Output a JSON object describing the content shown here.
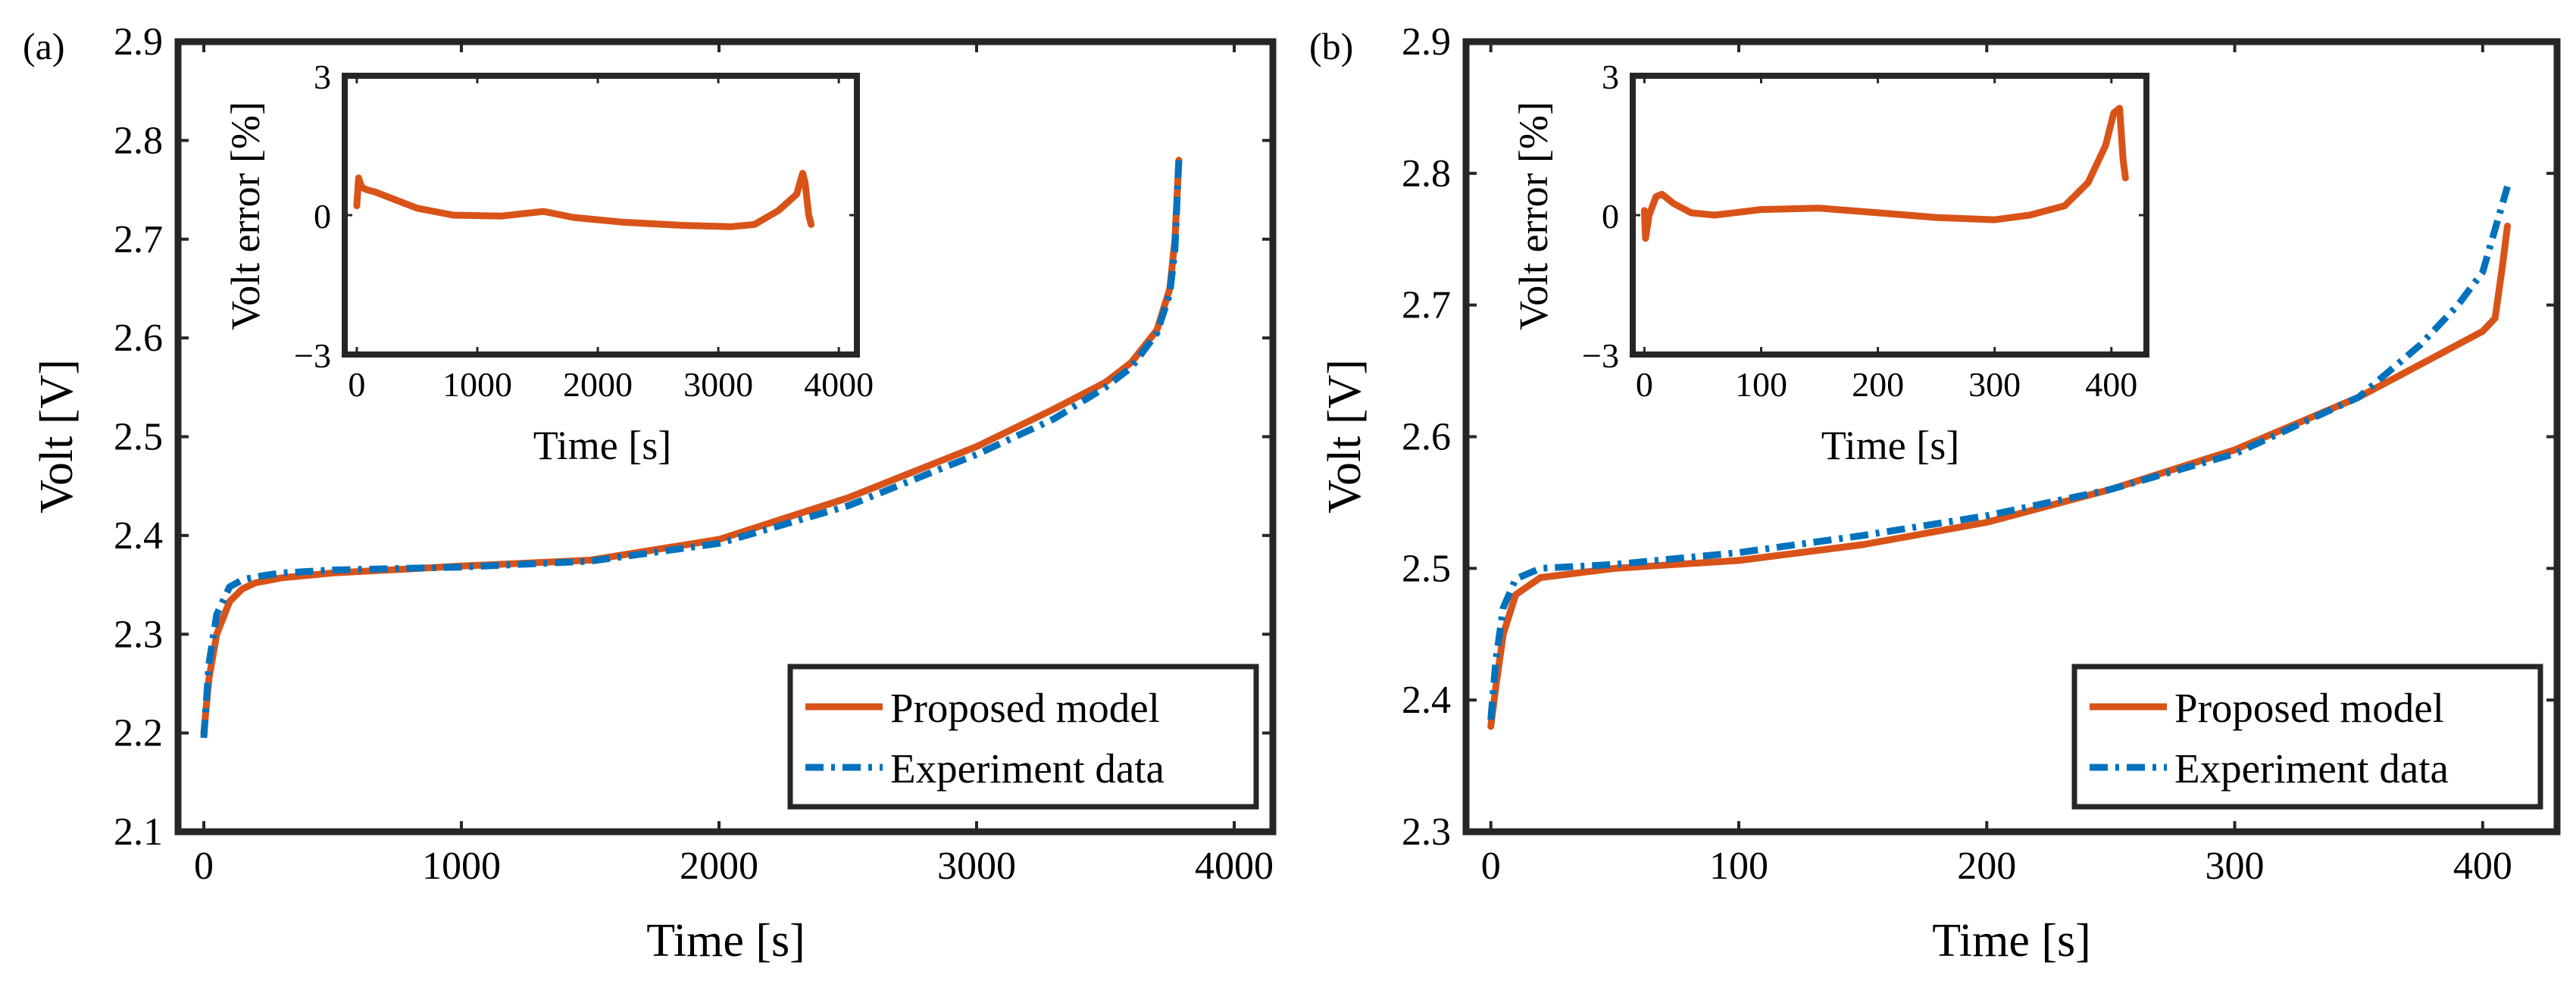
{
  "chart_data": [
    {
      "panel": "(a)",
      "type": "line",
      "xlabel": "Time [s]",
      "ylabel": "Volt [V]",
      "xlim": [
        -100,
        4150
      ],
      "ylim": [
        2.1,
        2.9
      ],
      "xticks": [
        0,
        1000,
        2000,
        3000,
        4000
      ],
      "yticks": [
        2.1,
        2.2,
        2.3,
        2.4,
        2.5,
        2.6,
        2.7,
        2.8,
        2.9
      ],
      "xtick_labels": [
        "0",
        "1000",
        "2000",
        "3000",
        "4000"
      ],
      "ytick_labels": [
        "2.1",
        "2.2",
        "2.3",
        "2.4",
        "2.5",
        "2.6",
        "2.7",
        "2.8",
        "2.9"
      ],
      "legend": [
        "Proposed model",
        "Experiment data"
      ],
      "legend_position": "bottom-right",
      "series": [
        {
          "name": "Proposed model",
          "color": "#D95319",
          "style": "solid",
          "points": [
            [
              0,
              2.2
            ],
            [
              20,
              2.255
            ],
            [
              50,
              2.3
            ],
            [
              100,
              2.333
            ],
            [
              150,
              2.346
            ],
            [
              200,
              2.352
            ],
            [
              300,
              2.357
            ],
            [
              500,
              2.362
            ],
            [
              1000,
              2.369
            ],
            [
              1500,
              2.375
            ],
            [
              2000,
              2.396
            ],
            [
              2500,
              2.438
            ],
            [
              3000,
              2.49
            ],
            [
              3300,
              2.528
            ],
            [
              3500,
              2.555
            ],
            [
              3600,
              2.575
            ],
            [
              3700,
              2.608
            ],
            [
              3750,
              2.65
            ],
            [
              3770,
              2.7
            ],
            [
              3785,
              2.78
            ]
          ]
        },
        {
          "name": "Experiment data",
          "color": "#0072BD",
          "style": "dashdot",
          "points": [
            [
              0,
              2.195
            ],
            [
              20,
              2.27
            ],
            [
              50,
              2.32
            ],
            [
              100,
              2.348
            ],
            [
              150,
              2.355
            ],
            [
              200,
              2.358
            ],
            [
              300,
              2.362
            ],
            [
              500,
              2.365
            ],
            [
              1000,
              2.368
            ],
            [
              1500,
              2.374
            ],
            [
              2000,
              2.392
            ],
            [
              2500,
              2.43
            ],
            [
              3000,
              2.482
            ],
            [
              3300,
              2.518
            ],
            [
              3500,
              2.55
            ],
            [
              3600,
              2.57
            ],
            [
              3700,
              2.605
            ],
            [
              3750,
              2.645
            ],
            [
              3770,
              2.69
            ],
            [
              3785,
              2.78
            ]
          ]
        }
      ],
      "inset": {
        "type": "line",
        "xlabel": "Time [s]",
        "ylabel": "Volt error [%]",
        "xlim": [
          -100,
          4150
        ],
        "ylim": [
          -3,
          3
        ],
        "xticks": [
          0,
          1000,
          2000,
          3000,
          4000
        ],
        "yticks": [
          -3,
          0,
          3
        ],
        "xtick_labels": [
          "0",
          "1000",
          "2000",
          "3000",
          "4000"
        ],
        "ytick_labels": [
          "−3",
          "0",
          "3"
        ],
        "series": [
          {
            "name": "Volt error",
            "color": "#D95319",
            "style": "solid",
            "points": [
              [
                0,
                0.2
              ],
              [
                15,
                0.8
              ],
              [
                40,
                0.6
              ],
              [
                80,
                0.55
              ],
              [
                150,
                0.5
              ],
              [
                300,
                0.35
              ],
              [
                500,
                0.15
              ],
              [
                800,
                0.0
              ],
              [
                1200,
                -0.02
              ],
              [
                1550,
                0.08
              ],
              [
                1800,
                -0.05
              ],
              [
                2200,
                -0.15
              ],
              [
                2700,
                -0.22
              ],
              [
                3100,
                -0.25
              ],
              [
                3300,
                -0.2
              ],
              [
                3500,
                0.1
              ],
              [
                3650,
                0.45
              ],
              [
                3700,
                0.9
              ],
              [
                3720,
                0.7
              ],
              [
                3750,
                0.0
              ],
              [
                3770,
                -0.2
              ]
            ]
          }
        ]
      }
    },
    {
      "panel": "(b)",
      "type": "line",
      "xlabel": "Time [s]",
      "ylabel": "Volt [V]",
      "xlim": [
        -10,
        430
      ],
      "ylim": [
        2.3,
        2.9
      ],
      "xticks": [
        0,
        100,
        200,
        300,
        400
      ],
      "yticks": [
        2.3,
        2.4,
        2.5,
        2.6,
        2.7,
        2.8,
        2.9
      ],
      "xtick_labels": [
        "0",
        "100",
        "200",
        "300",
        "400"
      ],
      "ytick_labels": [
        "2.3",
        "2.4",
        "2.5",
        "2.6",
        "2.7",
        "2.8",
        "2.9"
      ],
      "legend": [
        "Proposed model",
        "Experiment data"
      ],
      "legend_position": "bottom-right",
      "series": [
        {
          "name": "Proposed model",
          "color": "#D95319",
          "style": "solid",
          "points": [
            [
              0,
              2.38
            ],
            [
              2,
              2.41
            ],
            [
              5,
              2.45
            ],
            [
              10,
              2.48
            ],
            [
              20,
              2.493
            ],
            [
              50,
              2.5
            ],
            [
              100,
              2.506
            ],
            [
              150,
              2.518
            ],
            [
              200,
              2.535
            ],
            [
              250,
              2.56
            ],
            [
              300,
              2.59
            ],
            [
              350,
              2.63
            ],
            [
              380,
              2.66
            ],
            [
              400,
              2.68
            ],
            [
              405,
              2.69
            ],
            [
              408,
              2.73
            ],
            [
              410,
              2.76
            ]
          ]
        },
        {
          "name": "Experiment data",
          "color": "#0072BD",
          "style": "dashdot",
          "points": [
            [
              0,
              2.385
            ],
            [
              2,
              2.43
            ],
            [
              5,
              2.47
            ],
            [
              10,
              2.492
            ],
            [
              20,
              2.5
            ],
            [
              50,
              2.503
            ],
            [
              100,
              2.512
            ],
            [
              150,
              2.525
            ],
            [
              200,
              2.54
            ],
            [
              250,
              2.56
            ],
            [
              300,
              2.587
            ],
            [
              350,
              2.63
            ],
            [
              375,
              2.67
            ],
            [
              390,
              2.7
            ],
            [
              400,
              2.725
            ],
            [
              410,
              2.79
            ]
          ]
        }
      ],
      "inset": {
        "type": "line",
        "xlabel": "Time [s]",
        "ylabel": "Volt error [%]",
        "xlim": [
          -10,
          430
        ],
        "ylim": [
          -3,
          3
        ],
        "xticks": [
          0,
          100,
          200,
          300,
          400
        ],
        "yticks": [
          -3,
          0,
          3
        ],
        "xtick_labels": [
          "0",
          "100",
          "200",
          "300",
          "400"
        ],
        "ytick_labels": [
          "−3",
          "0",
          "3"
        ],
        "series": [
          {
            "name": "Volt error",
            "color": "#D95319",
            "style": "solid",
            "points": [
              [
                0,
                0.1
              ],
              [
                1,
                -0.5
              ],
              [
                4,
                0.0
              ],
              [
                10,
                0.4
              ],
              [
                15,
                0.45
              ],
              [
                25,
                0.25
              ],
              [
                40,
                0.05
              ],
              [
                60,
                0.0
              ],
              [
                100,
                0.12
              ],
              [
                150,
                0.15
              ],
              [
                200,
                0.05
              ],
              [
                250,
                -0.05
              ],
              [
                300,
                -0.1
              ],
              [
                330,
                0.0
              ],
              [
                360,
                0.2
              ],
              [
                380,
                0.7
              ],
              [
                395,
                1.5
              ],
              [
                402,
                2.2
              ],
              [
                407,
                2.3
              ],
              [
                410,
                1.2
              ],
              [
                412,
                0.8
              ]
            ]
          }
        ]
      }
    }
  ]
}
